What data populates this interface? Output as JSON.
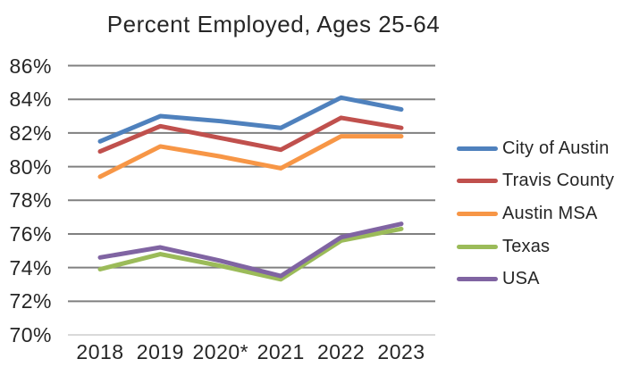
{
  "title": "Percent Employed, Ages 25-64",
  "chart_data": {
    "type": "line",
    "categories": [
      "2018",
      "2019",
      "2020*",
      "2021",
      "2022",
      "2023"
    ],
    "series": [
      {
        "name": "City of Austin",
        "color": "#4F81BD",
        "values": [
          81.5,
          83.0,
          82.7,
          82.3,
          84.1,
          83.4
        ]
      },
      {
        "name": "Travis County",
        "color": "#C0504D",
        "values": [
          80.9,
          82.4,
          81.7,
          81.0,
          82.9,
          82.3
        ]
      },
      {
        "name": "Austin MSA",
        "color": "#F79646",
        "values": [
          79.4,
          81.2,
          80.6,
          79.9,
          81.8,
          81.8
        ]
      },
      {
        "name": "Texas",
        "color": "#9BBB59",
        "values": [
          73.9,
          74.8,
          74.1,
          73.3,
          75.6,
          76.3
        ]
      },
      {
        "name": "USA",
        "color": "#8064A2",
        "values": [
          74.6,
          75.2,
          74.4,
          73.5,
          75.8,
          76.6
        ]
      }
    ],
    "title": "Percent Employed, Ages 25-64",
    "xlabel": "",
    "ylabel": "",
    "ylim": [
      70,
      86
    ],
    "ytick_values": [
      86,
      84,
      82,
      80,
      78,
      76,
      74,
      72,
      70
    ],
    "ytick_labels": [
      "86%",
      "84%",
      "82%",
      "80%",
      "78%",
      "76%",
      "74%",
      "72%",
      "70%"
    ],
    "grid": true,
    "legend_position": "right",
    "grid_color": "#808080",
    "baseline_color": "#D9D9D9",
    "text_color": "#262626",
    "line_width": 5
  }
}
